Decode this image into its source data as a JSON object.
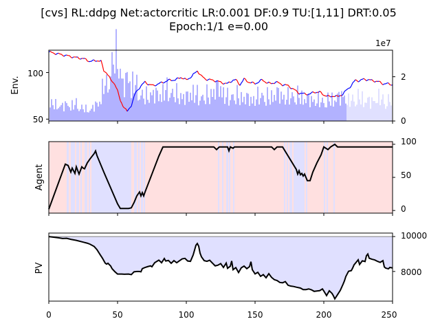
{
  "title": {
    "line1": "[cvs] RL:ddpg Net:actorcritic LR:0.001 DF:0.9 TU:[1,11] DRT:0.05",
    "line2": "Epoch:1/1 e=0.00"
  },
  "colors": {
    "up": "#0000ff",
    "down": "#ff0000",
    "volume": "#b2b2ff",
    "long_bg": "#ffe0e0",
    "short_bg": "#e0e0ff",
    "pv_fill": "#e0e0ff",
    "line": "#000000"
  },
  "chart_data": [
    {
      "type": "line",
      "name": "env",
      "ylabel": "Env.",
      "ylim_left": [
        48,
        124
      ],
      "yticks_left": [
        "100",
        "50"
      ],
      "ylim_right": [
        0,
        32000000
      ],
      "yticks_right": [
        "2",
        "0"
      ],
      "right_offset_text": "1e7",
      "price_anchors": [
        [
          0,
          122
        ],
        [
          10,
          119
        ],
        [
          20,
          116
        ],
        [
          25,
          115
        ],
        [
          30,
          112
        ],
        [
          35,
          113
        ],
        [
          38,
          112
        ],
        [
          40,
          102
        ],
        [
          42,
          100
        ],
        [
          45,
          92
        ],
        [
          48,
          88
        ],
        [
          50,
          80
        ],
        [
          52,
          70
        ],
        [
          55,
          62
        ],
        [
          57,
          58
        ],
        [
          60,
          65
        ],
        [
          63,
          78
        ],
        [
          66,
          84
        ],
        [
          70,
          90
        ],
        [
          73,
          87
        ],
        [
          76,
          86
        ],
        [
          80,
          88
        ],
        [
          84,
          90
        ],
        [
          88,
          92
        ],
        [
          92,
          92
        ],
        [
          96,
          95
        ],
        [
          100,
          92
        ],
        [
          104,
          96
        ],
        [
          108,
          102
        ],
        [
          111,
          96
        ],
        [
          114,
          93
        ],
        [
          118,
          92
        ],
        [
          122,
          91
        ],
        [
          126,
          89
        ],
        [
          130,
          88
        ],
        [
          134,
          92
        ],
        [
          136,
          92
        ],
        [
          139,
          87
        ],
        [
          142,
          93
        ],
        [
          145,
          90
        ],
        [
          150,
          88
        ],
        [
          155,
          92
        ],
        [
          159,
          89
        ],
        [
          162,
          88
        ],
        [
          165,
          90
        ],
        [
          170,
          87
        ],
        [
          174,
          86
        ],
        [
          178,
          82
        ],
        [
          182,
          78
        ],
        [
          186,
          77
        ],
        [
          190,
          77
        ],
        [
          193,
          79
        ],
        [
          197,
          79
        ],
        [
          200,
          76
        ],
        [
          204,
          74
        ],
        [
          207,
          75
        ],
        [
          210,
          74
        ],
        [
          214,
          77
        ],
        [
          217,
          82
        ],
        [
          220,
          86
        ],
        [
          223,
          92
        ],
        [
          226,
          91
        ],
        [
          229,
          93
        ],
        [
          233,
          92
        ],
        [
          237,
          91
        ],
        [
          240,
          90
        ],
        [
          243,
          88
        ],
        [
          246,
          88
        ],
        [
          250,
          87
        ]
      ],
      "volume_anchors": [
        [
          0,
          8
        ],
        [
          10,
          7
        ],
        [
          14,
          8
        ],
        [
          16,
          7
        ],
        [
          20,
          8
        ],
        [
          24,
          6
        ],
        [
          30,
          5
        ],
        [
          33,
          7
        ],
        [
          36,
          8
        ],
        [
          38,
          12
        ],
        [
          40,
          18
        ],
        [
          42,
          16
        ],
        [
          44,
          21
        ],
        [
          46,
          26
        ],
        [
          48,
          31
        ],
        [
          50,
          30
        ],
        [
          52,
          24
        ],
        [
          54,
          17
        ],
        [
          56,
          18
        ],
        [
          58,
          22
        ],
        [
          60,
          17
        ],
        [
          62,
          19
        ],
        [
          65,
          14
        ],
        [
          70,
          11
        ],
        [
          75,
          13
        ],
        [
          80,
          12
        ],
        [
          85,
          15
        ],
        [
          90,
          13
        ],
        [
          95,
          12
        ],
        [
          100,
          11
        ],
        [
          105,
          14
        ],
        [
          108,
          12
        ],
        [
          112,
          11
        ],
        [
          118,
          13
        ],
        [
          124,
          16
        ],
        [
          130,
          11
        ],
        [
          136,
          12
        ],
        [
          142,
          11
        ],
        [
          148,
          10
        ],
        [
          154,
          12
        ],
        [
          160,
          11
        ],
        [
          166,
          13
        ],
        [
          172,
          11
        ],
        [
          180,
          12
        ],
        [
          190,
          10
        ],
        [
          200,
          9
        ],
        [
          205,
          10
        ],
        [
          210,
          11
        ],
        [
          215,
          12
        ],
        [
          217,
          9
        ],
        [
          225,
          11
        ],
        [
          230,
          10
        ],
        [
          235,
          9
        ],
        [
          240,
          11
        ],
        [
          245,
          9
        ],
        [
          250,
          10
        ]
      ],
      "volume_range": [
        0,
        32000000
      ]
    },
    {
      "type": "line",
      "name": "agent",
      "ylabel": "Agent",
      "ylim": [
        -4,
        104
      ],
      "yticks": [
        "100",
        "50",
        "0"
      ],
      "values": [
        [
          0,
          2
        ],
        [
          12,
          70
        ],
        [
          14,
          68
        ],
        [
          16,
          58
        ],
        [
          17,
          64
        ],
        [
          19,
          56
        ],
        [
          20,
          66
        ],
        [
          22,
          55
        ],
        [
          24,
          66
        ],
        [
          25,
          64
        ],
        [
          26,
          63
        ],
        [
          28,
          72
        ],
        [
          30,
          78
        ],
        [
          33,
          86
        ],
        [
          34,
          90
        ],
        [
          35,
          83
        ],
        [
          40,
          58
        ],
        [
          45,
          34
        ],
        [
          50,
          10
        ],
        [
          52,
          3
        ],
        [
          56,
          3
        ],
        [
          58,
          3
        ],
        [
          60,
          4
        ],
        [
          62,
          12
        ],
        [
          64,
          22
        ],
        [
          66,
          28
        ],
        [
          67,
          22
        ],
        [
          68,
          27
        ],
        [
          69,
          22
        ],
        [
          70,
          28
        ],
        [
          75,
          55
        ],
        [
          80,
          82
        ],
        [
          83,
          96
        ],
        [
          120,
          96
        ],
        [
          122,
          92
        ],
        [
          124,
          96
        ],
        [
          130,
          96
        ],
        [
          131,
          90
        ],
        [
          132,
          96
        ],
        [
          134,
          94
        ],
        [
          135,
          96
        ],
        [
          162,
          96
        ],
        [
          164,
          92
        ],
        [
          166,
          96
        ],
        [
          170,
          96
        ],
        [
          180,
          62
        ],
        [
          181,
          55
        ],
        [
          182,
          60
        ],
        [
          183,
          54
        ],
        [
          184,
          56
        ],
        [
          185,
          52
        ],
        [
          186,
          55
        ],
        [
          187,
          50
        ],
        [
          188,
          45
        ],
        [
          190,
          45
        ],
        [
          192,
          58
        ],
        [
          195,
          72
        ],
        [
          198,
          84
        ],
        [
          200,
          96
        ],
        [
          203,
          92
        ],
        [
          205,
          96
        ],
        [
          208,
          100
        ],
        [
          210,
          96
        ],
        [
          250,
          96
        ]
      ],
      "short_spans": [
        [
          13,
          14.5
        ],
        [
          16,
          19
        ],
        [
          20,
          22
        ],
        [
          23,
          24
        ],
        [
          26,
          28
        ],
        [
          29,
          30
        ],
        [
          31,
          36
        ],
        [
          36,
          58
        ],
        [
          58,
          60
        ],
        [
          62,
          64
        ],
        [
          65,
          66
        ],
        [
          67,
          68.5
        ],
        [
          69,
          70
        ],
        [
          123,
          124
        ],
        [
          126,
          127
        ],
        [
          129,
          130.5
        ],
        [
          131,
          132
        ],
        [
          134,
          135
        ],
        [
          171,
          172
        ],
        [
          173,
          174
        ],
        [
          175,
          177
        ],
        [
          178,
          186
        ],
        [
          187,
          188
        ],
        [
          200,
          201
        ],
        [
          202,
          203
        ],
        [
          207,
          208
        ]
      ]
    },
    {
      "type": "area",
      "name": "pv",
      "ylabel": "PV",
      "ylim": [
        6300,
        10200
      ],
      "yticks": [
        "10000",
        "8000"
      ],
      "reference": 10000,
      "values": [
        [
          0,
          10000
        ],
        [
          3,
          9970
        ],
        [
          7,
          9930
        ],
        [
          10,
          9890
        ],
        [
          13,
          9900
        ],
        [
          16,
          9840
        ],
        [
          20,
          9780
        ],
        [
          25,
          9680
        ],
        [
          28,
          9620
        ],
        [
          30,
          9560
        ],
        [
          33,
          9430
        ],
        [
          35,
          9250
        ],
        [
          37,
          9000
        ],
        [
          39,
          8760
        ],
        [
          40,
          8620
        ],
        [
          41,
          8480
        ],
        [
          42,
          8420
        ],
        [
          43,
          8470
        ],
        [
          45,
          8310
        ],
        [
          46,
          8160
        ],
        [
          48,
          7990
        ],
        [
          50,
          7850
        ],
        [
          53,
          7850
        ],
        [
          55,
          7840
        ],
        [
          58,
          7850
        ],
        [
          60,
          7820
        ],
        [
          62,
          7980
        ],
        [
          64,
          8000
        ],
        [
          66,
          8000
        ],
        [
          67,
          7980
        ],
        [
          68,
          8160
        ],
        [
          70,
          8230
        ],
        [
          72,
          8280
        ],
        [
          74,
          8320
        ],
        [
          75,
          8270
        ],
        [
          77,
          8500
        ],
        [
          80,
          8650
        ],
        [
          82,
          8500
        ],
        [
          84,
          8740
        ],
        [
          85,
          8600
        ],
        [
          87,
          8630
        ],
        [
          89,
          8470
        ],
        [
          91,
          8620
        ],
        [
          93,
          8500
        ],
        [
          95,
          8610
        ],
        [
          97,
          8720
        ],
        [
          99,
          8750
        ],
        [
          101,
          8600
        ],
        [
          103,
          8580
        ],
        [
          105,
          8950
        ],
        [
          107,
          9500
        ],
        [
          108,
          9600
        ],
        [
          109,
          9450
        ],
        [
          110,
          9050
        ],
        [
          111,
          8840
        ],
        [
          113,
          8620
        ],
        [
          115,
          8580
        ],
        [
          117,
          8640
        ],
        [
          119,
          8480
        ],
        [
          121,
          8320
        ],
        [
          123,
          8360
        ],
        [
          125,
          8450
        ],
        [
          127,
          8230
        ],
        [
          129,
          8480
        ],
        [
          130,
          8180
        ],
        [
          132,
          8300
        ],
        [
          133,
          8600
        ],
        [
          134,
          8100
        ],
        [
          136,
          8220
        ],
        [
          138,
          7940
        ],
        [
          140,
          8210
        ],
        [
          142,
          8310
        ],
        [
          144,
          8160
        ],
        [
          146,
          8280
        ],
        [
          147,
          8560
        ],
        [
          148,
          8100
        ],
        [
          150,
          7860
        ],
        [
          152,
          7950
        ],
        [
          154,
          7720
        ],
        [
          156,
          7820
        ],
        [
          158,
          7640
        ],
        [
          160,
          7870
        ],
        [
          162,
          7660
        ],
        [
          164,
          7530
        ],
        [
          166,
          7480
        ],
        [
          168,
          7370
        ],
        [
          170,
          7350
        ],
        [
          172,
          7420
        ],
        [
          174,
          7210
        ],
        [
          176,
          7160
        ],
        [
          178,
          7140
        ],
        [
          180,
          7100
        ],
        [
          183,
          7050
        ],
        [
          185,
          6960
        ],
        [
          187,
          6960
        ],
        [
          189,
          7000
        ],
        [
          191,
          6950
        ],
        [
          193,
          6860
        ],
        [
          195,
          6880
        ],
        [
          197,
          6900
        ],
        [
          199,
          7000
        ],
        [
          200,
          6880
        ],
        [
          202,
          6620
        ],
        [
          204,
          6890
        ],
        [
          206,
          6740
        ],
        [
          207,
          6600
        ],
        [
          208,
          6430
        ],
        [
          210,
          6670
        ],
        [
          212,
          6920
        ],
        [
          214,
          7270
        ],
        [
          215,
          7460
        ],
        [
          216,
          7710
        ],
        [
          218,
          8010
        ],
        [
          220,
          8050
        ],
        [
          221,
          8200
        ],
        [
          222,
          8380
        ],
        [
          224,
          8570
        ],
        [
          225,
          8670
        ],
        [
          226,
          8400
        ],
        [
          228,
          8610
        ],
        [
          230,
          8570
        ],
        [
          231,
          8900
        ],
        [
          232,
          9000
        ],
        [
          233,
          8760
        ],
        [
          235,
          8700
        ],
        [
          237,
          8660
        ],
        [
          239,
          8580
        ],
        [
          241,
          8520
        ],
        [
          243,
          8620
        ],
        [
          244,
          8260
        ],
        [
          245,
          8190
        ],
        [
          247,
          8150
        ],
        [
          248,
          8230
        ],
        [
          250,
          8200
        ]
      ]
    }
  ],
  "x_axis": {
    "xlim": [
      0,
      250
    ],
    "ticks": [
      "0",
      "50",
      "100",
      "150",
      "200",
      "250"
    ]
  }
}
